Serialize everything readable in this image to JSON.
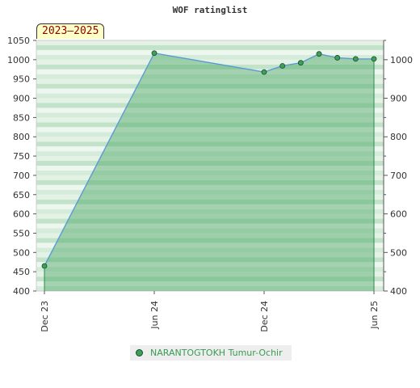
{
  "chart_data": {
    "type": "area",
    "title": "WOF ratinglist",
    "period_label": "2023–2025",
    "ylim": [
      400,
      1050
    ],
    "left_ticks": [
      400,
      450,
      500,
      550,
      600,
      650,
      700,
      750,
      800,
      850,
      900,
      950,
      1000,
      1050
    ],
    "right_ticks": [
      400,
      500,
      600,
      700,
      800,
      900,
      1000
    ],
    "x_ticks": [
      "Dec 23",
      "Jun 24",
      "Dec 24",
      "Jun 25"
    ],
    "x_tick_months": [
      0,
      6,
      12,
      18
    ],
    "grid": true,
    "legend_position": "bottom-center",
    "series": [
      {
        "name": "NARANTOGTOKH Tumur-Ochir",
        "color": "#3e9f5a",
        "line_color": "#5b9bd5",
        "x_months": [
          0,
          6,
          12,
          13,
          14,
          15,
          16,
          17,
          18
        ],
        "values": [
          465,
          1017,
          968,
          984,
          992,
          1015,
          1005,
          1002,
          1002
        ]
      }
    ]
  }
}
